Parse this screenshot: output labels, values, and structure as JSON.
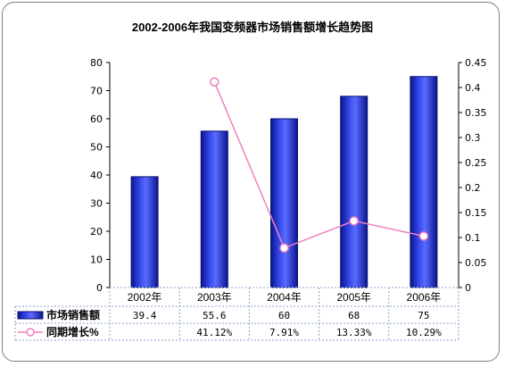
{
  "chart_data": {
    "type": "bar",
    "title": "2002-2006年我国变频器市场销售额增长趋势图",
    "categories": [
      "2002年",
      "2003年",
      "2004年",
      "2005年",
      "2006年"
    ],
    "series": [
      {
        "name": "市场销售额",
        "kind": "bar",
        "axis": "left",
        "values": [
          39.4,
          55.6,
          60,
          68,
          75
        ],
        "labels": [
          "39.4",
          "55.6",
          "60",
          "68",
          "75"
        ],
        "color": "#2f3fd0"
      },
      {
        "name": "同期增长%",
        "kind": "line",
        "axis": "right",
        "values": [
          null,
          0.4112,
          0.0791,
          0.1333,
          0.1029
        ],
        "labels": [
          "",
          "41.12%",
          "7.91%",
          "13.33%",
          "10.29%"
        ],
        "color": "#f080c0"
      }
    ],
    "y_left": {
      "ylim": [
        0,
        80
      ],
      "ticks": [
        "0",
        "10",
        "20",
        "30",
        "40",
        "50",
        "60",
        "70",
        "80"
      ]
    },
    "y_right": {
      "ylim": [
        0,
        0.45
      ],
      "ticks": [
        "0",
        "0.05",
        "0.1",
        "0.15",
        "0.2",
        "0.25",
        "0.3",
        "0.35",
        "0.4",
        "0.45"
      ]
    },
    "grid": false,
    "legend": "data-table-left"
  }
}
